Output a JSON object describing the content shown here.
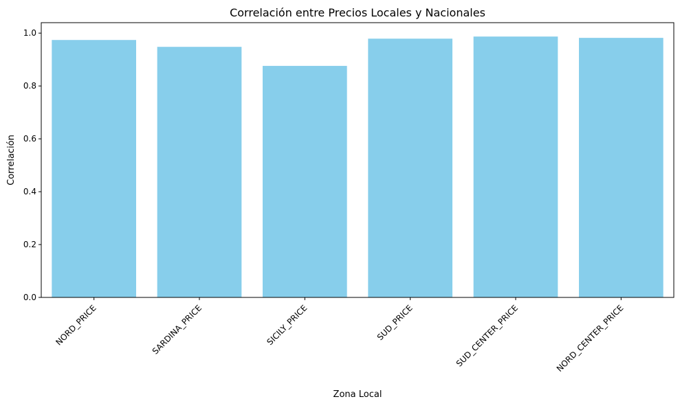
{
  "chart_data": {
    "type": "bar",
    "title": "Correlación entre Precios Locales y Nacionales",
    "xlabel": "Zona Local",
    "ylabel": "Correlación",
    "categories": [
      "NORD_PRICE",
      "SARDINA_PRICE",
      "SICILY_PRICE",
      "SUD_PRICE",
      "SUD_CENTER_PRICE",
      "NORD_CENTER_PRICE"
    ],
    "values": [
      0.974,
      0.948,
      0.876,
      0.979,
      0.987,
      0.982
    ],
    "ylim": [
      0,
      1.0395
    ],
    "yticks": [
      0.0,
      0.2,
      0.4,
      0.6,
      0.8,
      1.0
    ],
    "ytick_labels": [
      "0.0",
      "0.2",
      "0.4",
      "0.6",
      "0.8",
      "1.0"
    ],
    "bar_color": "#87CEEB",
    "grid": false,
    "legend": "none"
  }
}
